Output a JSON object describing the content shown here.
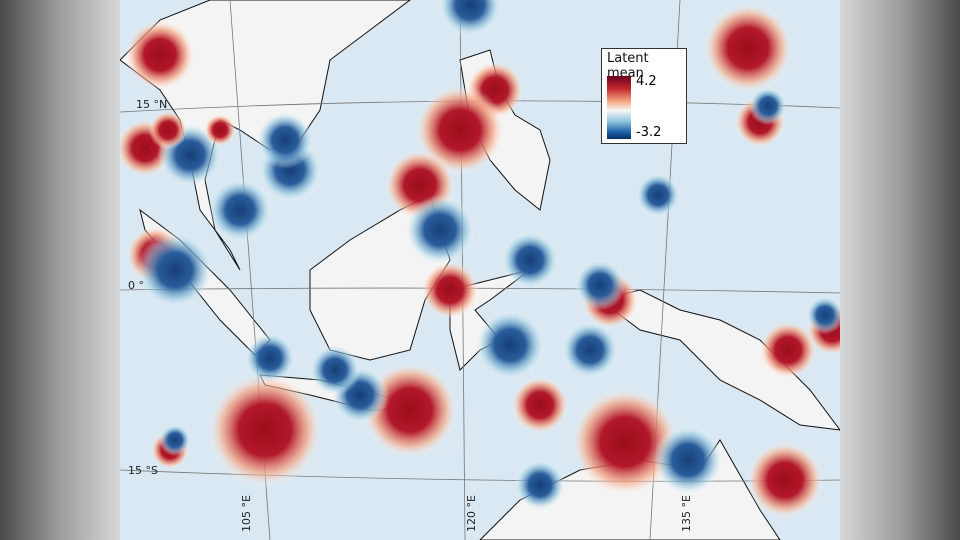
{
  "map": {
    "lat_labels": [
      "15 °N",
      "0 °",
      "15 °S"
    ],
    "lon_labels": [
      "105 °E",
      "120 °E",
      "135 °E"
    ],
    "colors": {
      "ocean": "#d9e8f2",
      "land": "#f4f4f4",
      "high": "#a50f15",
      "low": "#1f4e8c"
    }
  },
  "legend": {
    "title": "Latent mean",
    "max": "4.2",
    "min": "-3.2",
    "colormap": "red-white-blue diverging"
  }
}
